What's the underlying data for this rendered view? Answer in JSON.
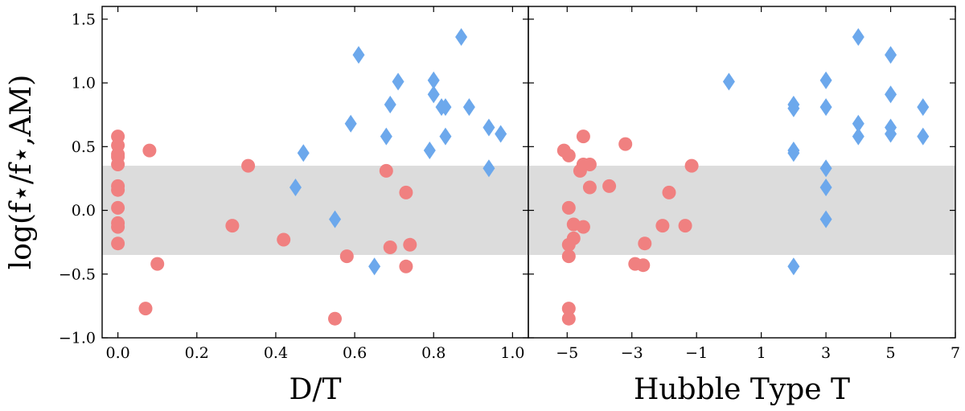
{
  "colors": {
    "circle": "#F08080",
    "diamond": "#6CA8EC",
    "band": "#DCDCDC"
  },
  "y_axis_label": "log(f⋆/f⋆,AM)",
  "chart_data": [
    {
      "type": "scatter",
      "panel": "left",
      "xlabel": "D/T",
      "ylabel": "log(f⋆/f⋆,AM)",
      "xlim": [
        -0.04,
        1.04
      ],
      "ylim": [
        -1.0,
        1.6
      ],
      "xticks": [
        0.0,
        0.2,
        0.4,
        0.6,
        0.8,
        1.0
      ],
      "xtick_labels": [
        "0.0",
        "0.2",
        "0.4",
        "0.6",
        "0.8",
        "1.0"
      ],
      "yticks": [
        -1.0,
        -0.5,
        0.0,
        0.5,
        1.0,
        1.5
      ],
      "ytick_labels": [
        "−1.0",
        "−0.5",
        "0.0",
        "0.5",
        "1.0",
        "1.5"
      ],
      "band": [
        -0.35,
        0.35
      ],
      "series": [
        {
          "name": "circles",
          "marker": "circle",
          "points": [
            [
              0.0,
              0.58
            ],
            [
              0.0,
              0.51
            ],
            [
              0.0,
              0.44
            ],
            [
              0.0,
              0.42
            ],
            [
              0.0,
              0.36
            ],
            [
              0.0,
              0.19
            ],
            [
              0.0,
              0.16
            ],
            [
              0.0,
              0.02
            ],
            [
              0.0,
              -0.1
            ],
            [
              0.0,
              -0.13
            ],
            [
              0.0,
              -0.26
            ],
            [
              0.07,
              -0.77
            ],
            [
              0.08,
              0.47
            ],
            [
              0.1,
              -0.42
            ],
            [
              0.29,
              -0.12
            ],
            [
              0.33,
              0.35
            ],
            [
              0.42,
              -0.23
            ],
            [
              0.55,
              -0.85
            ],
            [
              0.58,
              -0.36
            ],
            [
              0.68,
              0.31
            ],
            [
              0.69,
              -0.29
            ],
            [
              0.73,
              0.14
            ],
            [
              0.73,
              -0.44
            ],
            [
              0.74,
              -0.27
            ]
          ]
        },
        {
          "name": "diamonds",
          "marker": "diamond",
          "points": [
            [
              0.45,
              0.18
            ],
            [
              0.47,
              0.45
            ],
            [
              0.55,
              -0.07
            ],
            [
              0.59,
              0.68
            ],
            [
              0.61,
              1.22
            ],
            [
              0.65,
              -0.44
            ],
            [
              0.68,
              0.58
            ],
            [
              0.69,
              0.83
            ],
            [
              0.71,
              1.01
            ],
            [
              0.79,
              0.47
            ],
            [
              0.8,
              1.02
            ],
            [
              0.8,
              0.91
            ],
            [
              0.82,
              0.81
            ],
            [
              0.83,
              0.81
            ],
            [
              0.83,
              0.58
            ],
            [
              0.87,
              1.36
            ],
            [
              0.89,
              0.81
            ],
            [
              0.94,
              0.65
            ],
            [
              0.94,
              0.33
            ],
            [
              0.97,
              0.6
            ]
          ]
        }
      ]
    },
    {
      "type": "scatter",
      "panel": "right",
      "xlabel": "Hubble Type T",
      "ylabel": "",
      "xlim": [
        -6.2,
        7.0
      ],
      "ylim": [
        -1.0,
        1.6
      ],
      "xticks": [
        -5,
        -3,
        -1,
        1,
        3,
        5,
        7
      ],
      "xtick_labels": [
        "−5",
        "−3",
        "−1",
        "1",
        "3",
        "5",
        "7"
      ],
      "yticks": [
        -1.0,
        -0.5,
        0.0,
        0.5,
        1.0,
        1.5
      ],
      "band": [
        -0.35,
        0.35
      ],
      "series": [
        {
          "name": "circles",
          "marker": "circle",
          "points": [
            [
              -5.1,
              0.47
            ],
            [
              -4.95,
              0.43
            ],
            [
              -4.5,
              0.58
            ],
            [
              -4.5,
              0.36
            ],
            [
              -4.6,
              0.31
            ],
            [
              -4.3,
              0.36
            ],
            [
              -4.3,
              0.18
            ],
            [
              -3.7,
              0.19
            ],
            [
              -3.2,
              0.52
            ],
            [
              -4.95,
              0.02
            ],
            [
              -4.8,
              -0.11
            ],
            [
              -4.5,
              -0.13
            ],
            [
              -4.95,
              -0.27
            ],
            [
              -4.8,
              -0.22
            ],
            [
              -4.95,
              -0.36
            ],
            [
              -4.95,
              -0.77
            ],
            [
              -4.95,
              -0.85
            ],
            [
              -2.9,
              -0.42
            ],
            [
              -2.65,
              -0.43
            ],
            [
              -2.6,
              -0.26
            ],
            [
              -2.05,
              -0.12
            ],
            [
              -1.85,
              0.14
            ],
            [
              -1.35,
              -0.12
            ],
            [
              -1.15,
              0.35
            ]
          ]
        },
        {
          "name": "diamonds",
          "marker": "diamond",
          "points": [
            [
              0.0,
              1.01
            ],
            [
              2.0,
              0.83
            ],
            [
              2.0,
              0.8
            ],
            [
              2.0,
              0.47
            ],
            [
              2.0,
              0.45
            ],
            [
              2.0,
              -0.44
            ],
            [
              3.0,
              1.02
            ],
            [
              3.0,
              0.81
            ],
            [
              3.0,
              0.33
            ],
            [
              3.0,
              0.18
            ],
            [
              3.0,
              -0.07
            ],
            [
              4.0,
              1.36
            ],
            [
              4.0,
              0.68
            ],
            [
              4.0,
              0.58
            ],
            [
              5.0,
              1.22
            ],
            [
              5.0,
              0.91
            ],
            [
              5.0,
              0.65
            ],
            [
              5.0,
              0.6
            ],
            [
              6.0,
              0.81
            ],
            [
              6.0,
              0.58
            ]
          ]
        }
      ]
    }
  ]
}
